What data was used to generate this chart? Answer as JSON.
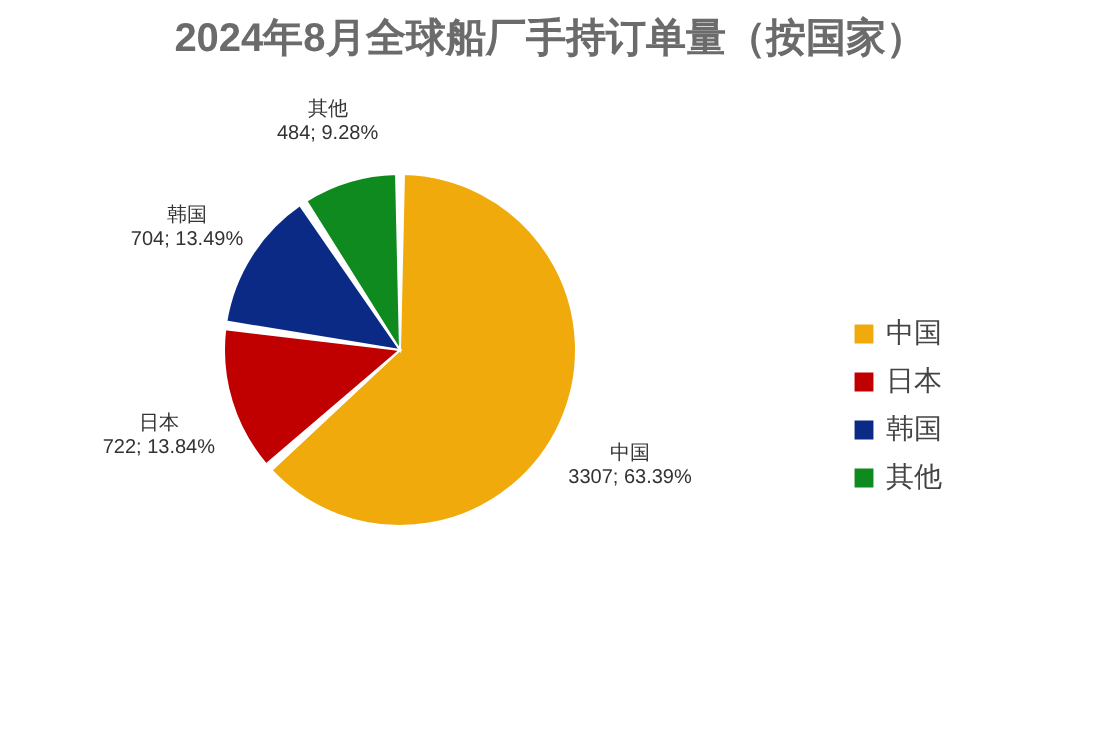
{
  "chart_data": {
    "type": "pie",
    "title": "2024年8月全球船厂手持订单量（按国家）",
    "categories": [
      "中国",
      "日本",
      "韩国",
      "其他"
    ],
    "values": [
      3307,
      722,
      704,
      484
    ],
    "colors": [
      "#f0aa0c",
      "#c00000",
      "#0b2a86",
      "#0e8a1e"
    ],
    "value_labels": [
      "3307; 63.39%",
      "722; 13.84%",
      "704; 13.49%",
      "484; 9.28%"
    ],
    "legend": "right"
  }
}
